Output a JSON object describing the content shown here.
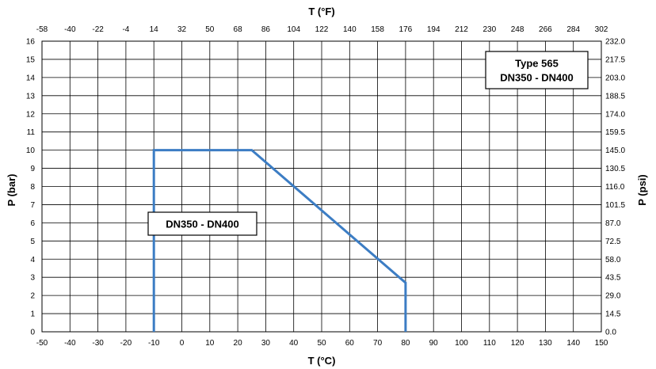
{
  "chart_data": {
    "type": "line",
    "xlabel": "T (°C)",
    "x2label": "T (°F)",
    "ylabel": "P (bar)",
    "y2label": "P (psi)",
    "xlim": [
      -50,
      150
    ],
    "ylim": [
      0,
      16
    ],
    "grid": true,
    "x_ticks": [
      "-50",
      "-40",
      "-30",
      "-20",
      "-10",
      "0",
      "10",
      "20",
      "30",
      "40",
      "50",
      "60",
      "70",
      "80",
      "90",
      "100",
      "110",
      "120",
      "130",
      "140",
      "150"
    ],
    "x2_ticks": [
      "-58",
      "-40",
      "-22",
      "-4",
      "14",
      "32",
      "50",
      "68",
      "86",
      "104",
      "122",
      "140",
      "158",
      "176",
      "194",
      "212",
      "230",
      "248",
      "266",
      "284",
      "302"
    ],
    "y_ticks": [
      "0",
      "1",
      "2",
      "3",
      "4",
      "5",
      "6",
      "7",
      "8",
      "9",
      "10",
      "11",
      "12",
      "13",
      "14",
      "15",
      "16"
    ],
    "y2_ticks": [
      "0.0",
      "14.5",
      "29.0",
      "43.5",
      "58.0",
      "72.5",
      "87.0",
      "101.5",
      "116.0",
      "130.5",
      "145.0",
      "159.5",
      "174.0",
      "188.5",
      "203.0",
      "217.5",
      "232.0"
    ],
    "series": [
      {
        "color": "#3c7dc4",
        "x": [
          -10,
          -10,
          25,
          80,
          80
        ],
        "y": [
          0,
          10,
          10,
          2.7,
          0
        ]
      }
    ],
    "annotations": [
      {
        "lines": [
          "DN350 - DN400"
        ],
        "position": "center-left"
      },
      {
        "lines": [
          "Type 565",
          "DN350 - DN400"
        ],
        "position": "top-right"
      }
    ]
  }
}
